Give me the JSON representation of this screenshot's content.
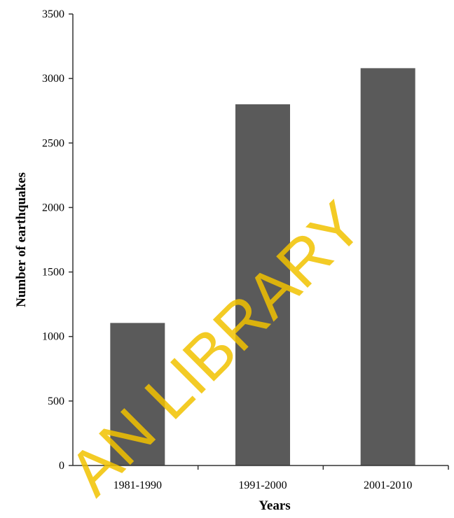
{
  "chart_data": {
    "type": "bar",
    "title": "",
    "xlabel": "Years",
    "ylabel": "Number  of earthquakes",
    "categories": [
      "1981-1990",
      "1991-2000",
      "2001-2010"
    ],
    "values": [
      1105,
      2800,
      3080
    ],
    "ylim": [
      0,
      3500
    ],
    "yticks": [
      0,
      500,
      1000,
      1500,
      2000,
      2500,
      3000,
      3500
    ],
    "grid": false,
    "legend": "none",
    "bar_color": "#5a5a5a",
    "axis_color": "#333333"
  },
  "watermark": {
    "text": "AN LIBRARY",
    "color": "#f2c200"
  }
}
